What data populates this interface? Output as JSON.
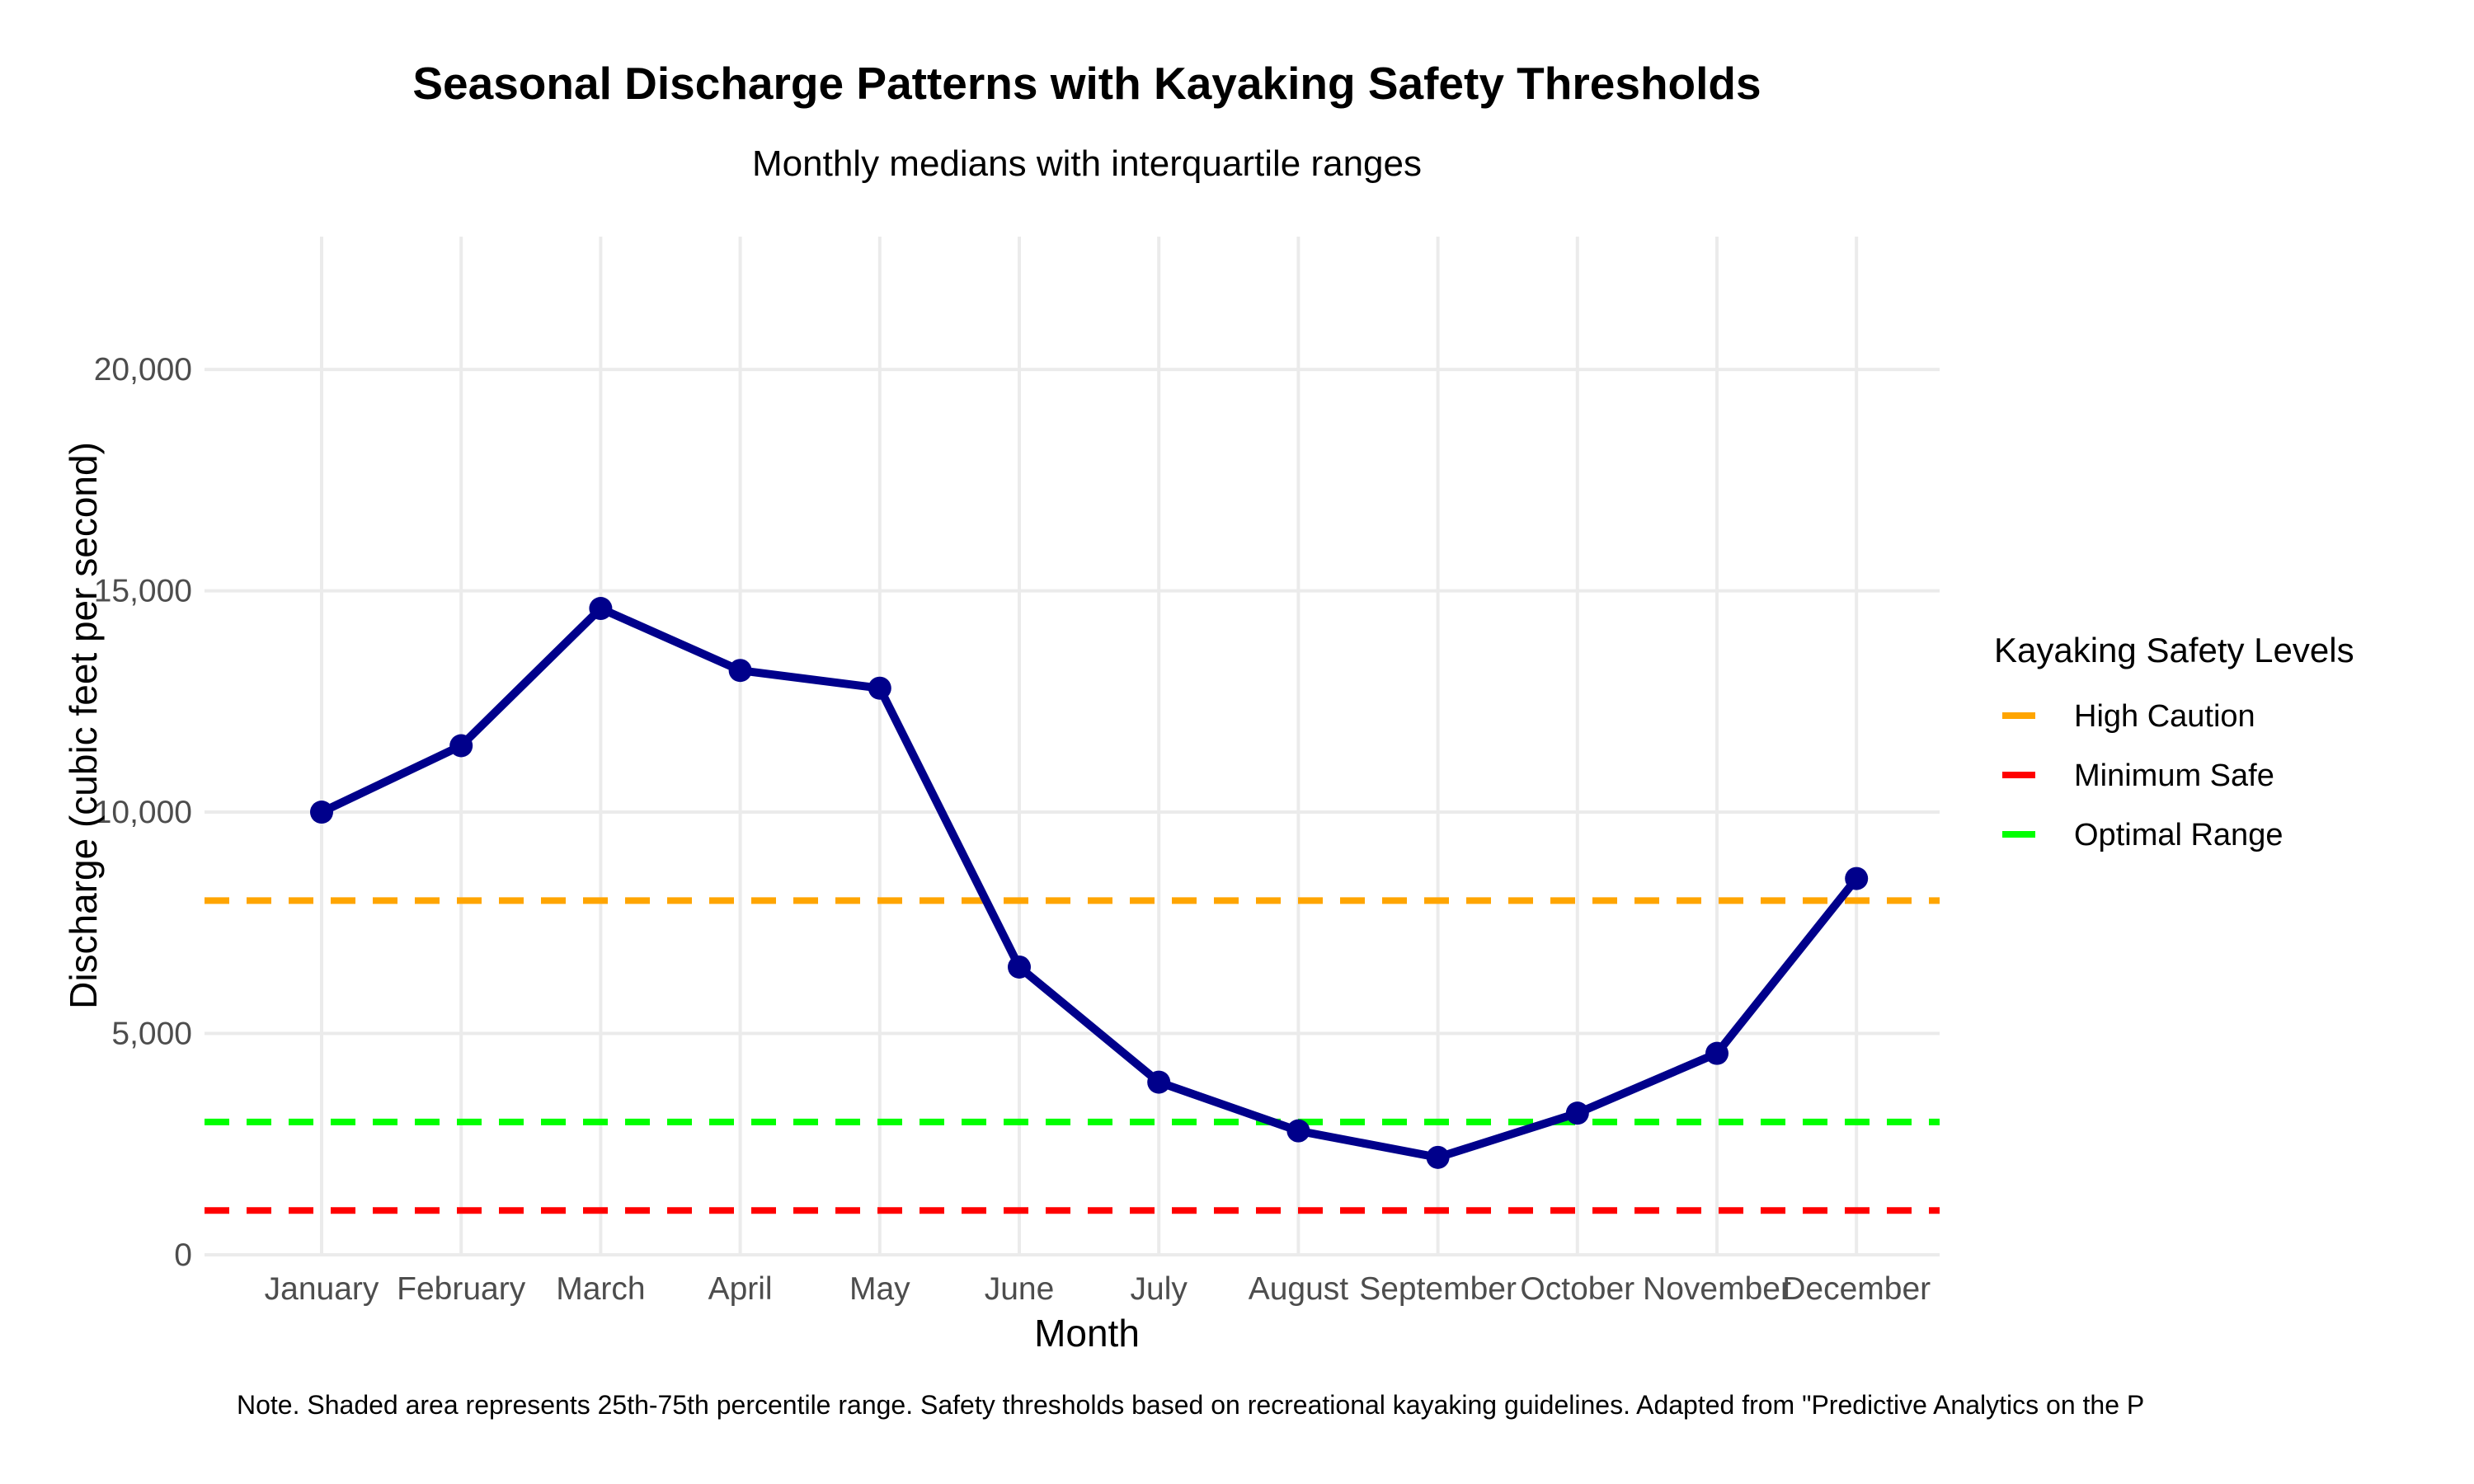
{
  "chart_data": {
    "type": "line",
    "title": "Seasonal Discharge Patterns with Kayaking Safety Thresholds",
    "subtitle": "Monthly medians with interquartile ranges",
    "xlabel": "Month",
    "ylabel": "Discharge (cubic feet per second)",
    "ylim": [
      0,
      23000
    ],
    "yticks": [
      {
        "value": 0,
        "label": "0"
      },
      {
        "value": 5000,
        "label": "5,000"
      },
      {
        "value": 10000,
        "label": "10,000"
      },
      {
        "value": 15000,
        "label": "15,000"
      },
      {
        "value": 20000,
        "label": "20,000"
      }
    ],
    "categories": [
      "January",
      "February",
      "March",
      "April",
      "May",
      "June",
      "July",
      "August",
      "September",
      "October",
      "November",
      "December"
    ],
    "series": [
      {
        "color": "#00008B",
        "values": [
          10000,
          11500,
          14600,
          13200,
          12800,
          6500,
          3900,
          2800,
          2200,
          3200,
          4550,
          8500
        ]
      }
    ],
    "thresholds": [
      {
        "name": "High Caution",
        "value": 8000,
        "color": "#FFA500"
      },
      {
        "name": "Minimum Safe",
        "value": 1000,
        "color": "#FF0000"
      },
      {
        "name": "Optimal Range",
        "value": 3000,
        "color": "#00FF00"
      }
    ],
    "legend": {
      "title": "Kayaking Safety Levels",
      "position": "right"
    },
    "grid": true,
    "note": "Note. Shaded area represents 25th-75th percentile range. Safety thresholds based on recreational kayaking guidelines. Adapted from \"Predictive Analytics on the P"
  }
}
